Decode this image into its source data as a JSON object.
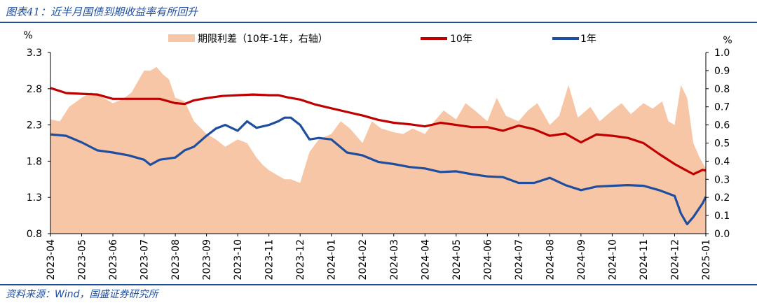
{
  "header": {
    "title": "图表41：近半月国债到期收益率有所回升"
  },
  "footer": {
    "source": "资料来源：Wind，国盛证券研究所"
  },
  "colors": {
    "accent": "#1f4e9e",
    "spread": "#f7c6a6",
    "y10": "#c00000",
    "y1": "#1f4e9e"
  },
  "chart_data": {
    "type": "line",
    "left_axis": {
      "unit": "%",
      "ticks": [
        "3.3",
        "2.8",
        "2.3",
        "1.8",
        "1.3",
        "0.8"
      ],
      "ylim": [
        0.8,
        3.3
      ]
    },
    "right_axis": {
      "unit": "%",
      "ticks": [
        "1.0",
        "0.9",
        "0.8",
        "0.7",
        "0.6",
        "0.5",
        "0.4",
        "0.3",
        "0.2",
        "0.1",
        "0.0"
      ],
      "ylim": [
        0.0,
        1.0
      ]
    },
    "categories": [
      "2023-04",
      "2023-05",
      "2023-06",
      "2023-07",
      "2023-08",
      "2023-09",
      "2023-10",
      "2023-11",
      "2023-12",
      "2024-01",
      "2024-02",
      "2024-03",
      "2024-04",
      "2024-05",
      "2024-06",
      "2024-07",
      "2024-08",
      "2024-09",
      "2024-10",
      "2024-11",
      "2024-12",
      "2025-01"
    ],
    "legend": [
      {
        "label": "期限利差（10年-1年，右轴）",
        "kind": "area",
        "color": "#f7c6a6"
      },
      {
        "label": "10年",
        "kind": "line",
        "color": "#c00000"
      },
      {
        "label": "1年",
        "kind": "line",
        "color": "#1f4e9e"
      }
    ],
    "series": [
      {
        "name": "10年",
        "axis": "left",
        "x": [
          0,
          0.5,
          1,
          1.5,
          2,
          2.5,
          3,
          3.5,
          4,
          4.3,
          4.6,
          5,
          5.5,
          6,
          6.5,
          7,
          7.3,
          7.6,
          8,
          8.5,
          9,
          9.5,
          10,
          10.5,
          11,
          11.5,
          12,
          12.5,
          13,
          13.5,
          14,
          14.5,
          15,
          15.5,
          16,
          16.5,
          17,
          17.5,
          18,
          18.5,
          19,
          19.5,
          20,
          20.3,
          20.6,
          20.9,
          21
        ],
        "values": [
          2.81,
          2.74,
          2.73,
          2.72,
          2.66,
          2.66,
          2.66,
          2.66,
          2.6,
          2.59,
          2.64,
          2.67,
          2.7,
          2.71,
          2.72,
          2.71,
          2.71,
          2.68,
          2.65,
          2.58,
          2.53,
          2.48,
          2.43,
          2.37,
          2.33,
          2.31,
          2.28,
          2.33,
          2.3,
          2.27,
          2.27,
          2.22,
          2.29,
          2.24,
          2.15,
          2.18,
          2.06,
          2.17,
          2.15,
          2.12,
          2.05,
          1.9,
          1.76,
          1.69,
          1.62,
          1.68,
          1.67
        ]
      },
      {
        "name": "1年",
        "axis": "left",
        "x": [
          0,
          0.5,
          1,
          1.5,
          2,
          2.5,
          3,
          3.2,
          3.5,
          4,
          4.3,
          4.6,
          5,
          5.3,
          5.6,
          6,
          6.3,
          6.6,
          7,
          7.3,
          7.5,
          7.7,
          8,
          8.3,
          8.6,
          9,
          9.5,
          10,
          10.5,
          11,
          11.5,
          12,
          12.5,
          13,
          13.5,
          14,
          14.5,
          15,
          15.5,
          16,
          16.5,
          17,
          17.5,
          18,
          18.5,
          19,
          19.5,
          20,
          20.2,
          20.4,
          20.6,
          20.9,
          21
        ],
        "values": [
          2.17,
          2.15,
          2.06,
          1.95,
          1.92,
          1.88,
          1.82,
          1.75,
          1.82,
          1.85,
          1.95,
          2.0,
          2.15,
          2.25,
          2.3,
          2.22,
          2.35,
          2.26,
          2.3,
          2.35,
          2.4,
          2.4,
          2.3,
          2.1,
          2.12,
          2.1,
          1.92,
          1.88,
          1.79,
          1.76,
          1.72,
          1.7,
          1.65,
          1.66,
          1.62,
          1.59,
          1.58,
          1.5,
          1.5,
          1.57,
          1.47,
          1.4,
          1.45,
          1.46,
          1.47,
          1.46,
          1.4,
          1.32,
          1.08,
          0.93,
          1.03,
          1.22,
          1.31
        ]
      },
      {
        "name": "期限利差（10年-1年，右轴）",
        "axis": "right",
        "x": [
          0,
          0.3,
          0.6,
          1,
          1.3,
          1.6,
          2,
          2.3,
          2.6,
          2.8,
          3,
          3.2,
          3.4,
          3.6,
          3.8,
          4,
          4.3,
          4.6,
          5,
          5.3,
          5.6,
          6,
          6.3,
          6.6,
          6.8,
          7,
          7.3,
          7.5,
          7.7,
          8,
          8.3,
          8.6,
          9,
          9.3,
          9.6,
          10,
          10.3,
          10.6,
          11,
          11.3,
          11.6,
          12,
          12.3,
          12.6,
          13,
          13.3,
          13.6,
          14,
          14.3,
          14.6,
          15,
          15.3,
          15.6,
          16,
          16.3,
          16.6,
          16.9,
          17.3,
          17.6,
          18,
          18.3,
          18.6,
          19,
          19.3,
          19.6,
          19.8,
          20,
          20.2,
          20.4,
          20.6,
          20.8,
          21
        ],
        "values": [
          0.63,
          0.62,
          0.7,
          0.75,
          0.78,
          0.76,
          0.72,
          0.74,
          0.78,
          0.84,
          0.9,
          0.9,
          0.92,
          0.88,
          0.85,
          0.75,
          0.73,
          0.62,
          0.55,
          0.52,
          0.48,
          0.52,
          0.5,
          0.42,
          0.38,
          0.35,
          0.32,
          0.3,
          0.3,
          0.28,
          0.45,
          0.52,
          0.55,
          0.62,
          0.58,
          0.5,
          0.62,
          0.58,
          0.56,
          0.55,
          0.58,
          0.55,
          0.62,
          0.68,
          0.63,
          0.72,
          0.68,
          0.62,
          0.75,
          0.65,
          0.62,
          0.68,
          0.72,
          0.6,
          0.65,
          0.82,
          0.64,
          0.7,
          0.62,
          0.68,
          0.72,
          0.66,
          0.72,
          0.69,
          0.73,
          0.62,
          0.6,
          0.82,
          0.75,
          0.5,
          0.42,
          0.36
        ]
      }
    ]
  }
}
